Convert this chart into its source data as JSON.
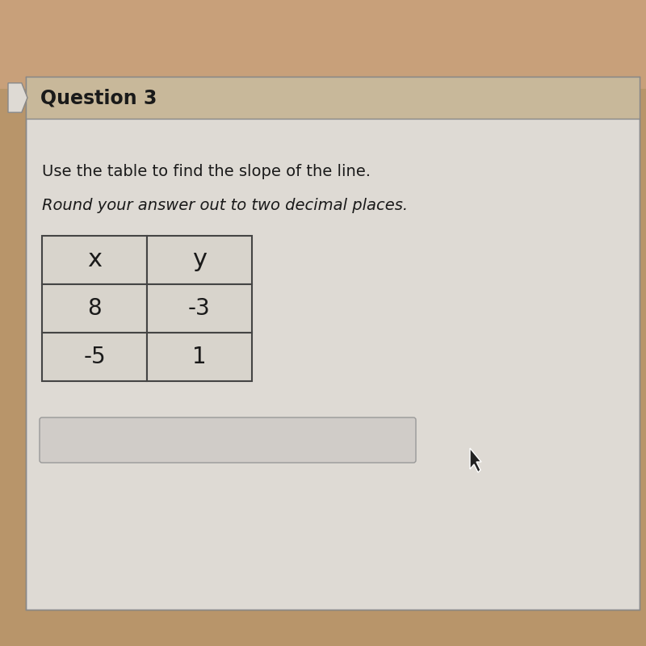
{
  "title": "Question 3",
  "instruction_line1": "Use the table to find the slope of the line.",
  "instruction_line2": "Round your answer out to two decimal places.",
  "table_headers": [
    "x",
    "y"
  ],
  "table_rows": [
    [
      "8",
      "-3"
    ],
    [
      "-5",
      "1"
    ]
  ],
  "bg_color_top": "#c8a07a",
  "bg_color_main": "#b8956a",
  "card_color": "#dedad4",
  "title_bar_color": "#c8b89a",
  "table_bg_color": "#d8d4cc",
  "table_border_color": "#444444",
  "answer_box_color": "#d0ccc8",
  "answer_box_border": "#999999",
  "title_fontsize": 17,
  "instruction1_fontsize": 14,
  "instruction2_fontsize": 14,
  "table_fontsize": 20,
  "header_fontsize": 22
}
